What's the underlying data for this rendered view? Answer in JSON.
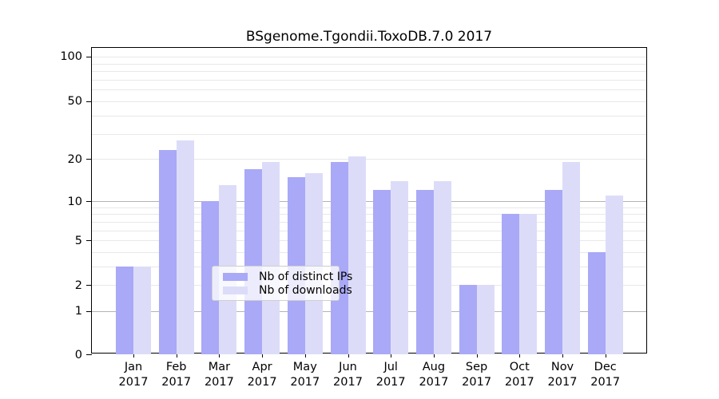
{
  "title": "BSgenome.Tgondii.ToxoDB.7.0 2017",
  "chart_data": {
    "type": "bar",
    "title": "BSgenome.Tgondii.ToxoDB.7.0 2017",
    "x_axis": {
      "months": [
        "Jan",
        "Feb",
        "Mar",
        "Apr",
        "May",
        "Jun",
        "Jul",
        "Aug",
        "Sep",
        "Oct",
        "Nov",
        "Dec"
      ],
      "year": "2017"
    },
    "y_axis": {
      "scale": "log-like (position ~ log10(value+1))",
      "range": [
        0,
        100
      ],
      "tick_values": [
        0,
        1,
        2,
        5,
        10,
        20,
        50,
        100
      ],
      "tick_labels": [
        "0",
        "1",
        "2",
        "5",
        "10",
        "20",
        "50",
        "100"
      ],
      "minor_gridline_values": [
        2,
        3,
        4,
        5,
        6,
        7,
        8,
        9,
        20,
        30,
        40,
        50,
        60,
        70,
        80,
        90,
        100
      ],
      "emphasized_gridline_values": [
        1,
        10
      ],
      "grid": "on"
    },
    "series": [
      {
        "name": "Nb of distinct IPs",
        "color": "#a9a9f7",
        "values": [
          3,
          23,
          10,
          17,
          15,
          19,
          12,
          12,
          2,
          8,
          12,
          4
        ]
      },
      {
        "name": "Nb of downloads",
        "color": "#dcdcf9",
        "values": [
          3,
          27,
          13,
          19,
          16,
          21,
          14,
          14,
          2,
          8,
          19,
          11
        ]
      }
    ],
    "legend_position": "bottom-center"
  },
  "colors": {
    "background": "#ffffff",
    "axis": "#000000",
    "grid_minor": "#e8e8e8",
    "grid_major": "#b3b3b3",
    "bar_distinct_ips": "#a9a9f7",
    "bar_downloads": "#dcdcf9",
    "legend_border": "#cfcfcf"
  }
}
